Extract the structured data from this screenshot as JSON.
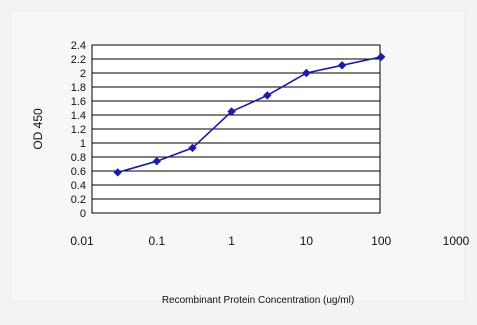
{
  "chart_data": {
    "type": "line",
    "title": "",
    "xlabel": "Recombinant Protein Concentration (ug/ml)",
    "ylabel": "OD 450",
    "x_scale": "log",
    "xlim": [
      0.01,
      1000
    ],
    "ylim": [
      0,
      2.4
    ],
    "x_ticks": [
      "0.01",
      "0.1",
      "1",
      "10",
      "100",
      "1000"
    ],
    "y_ticks": [
      "0",
      "0.2",
      "0.4",
      "0.6",
      "0.8",
      "1",
      "1.2",
      "1.4",
      "1.6",
      "1.8",
      "2",
      "2.2",
      "2.4"
    ],
    "grid": true,
    "series": [
      {
        "x": [
          0.03,
          0.1,
          0.3,
          1,
          3,
          10,
          30,
          100
        ],
        "y": [
          0.58,
          0.74,
          0.93,
          1.45,
          1.68,
          2.0,
          2.11,
          2.23
        ]
      }
    ],
    "colors": {
      "line": "#1c1ca8",
      "marker": "#1c1ca8",
      "plot_bg": "#ffffff",
      "grid": "#000000"
    }
  }
}
